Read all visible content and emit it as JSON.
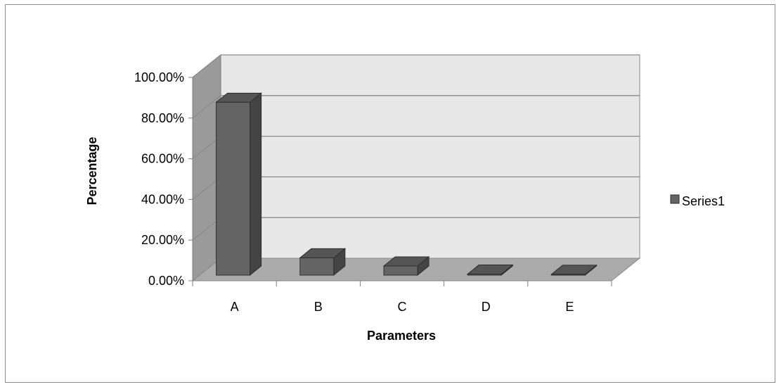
{
  "chart_data": {
    "type": "bar",
    "categories": [
      "A",
      "B",
      "C",
      "D",
      "E"
    ],
    "series": [
      {
        "name": "Series1",
        "values": [
          0.85,
          0.085,
          0.045,
          0.005,
          0.004
        ]
      }
    ],
    "xlabel": "Parameters",
    "ylabel": "Percentage",
    "ylim": [
      0,
      1
    ],
    "y_ticks": [
      "0.00%",
      "20.00%",
      "40.00%",
      "60.00%",
      "80.00%",
      "100.00%"
    ],
    "grid": true,
    "legend": "right",
    "style": "3d-column",
    "colors": {
      "bar_front": "#646464",
      "bar_top": "#555555",
      "bar_side": "#444444",
      "back_wall": "#e8e8e8",
      "side_wall": "#9a9a9a",
      "floor": "#ababab",
      "gridline": "#8a8a8a"
    }
  }
}
